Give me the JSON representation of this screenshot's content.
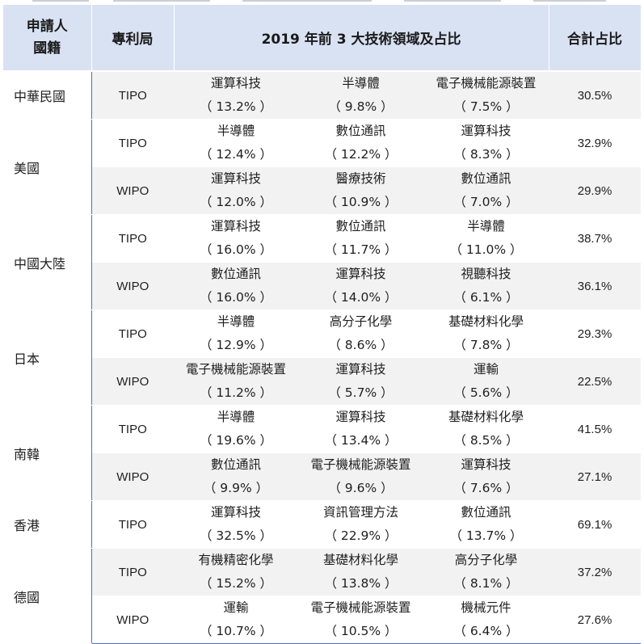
{
  "header": {
    "country_line1": "申請人",
    "country_line2": "國籍",
    "office": "專利局",
    "fields": "2019 年前 3 大技術領域及占比",
    "total": "合計占比"
  },
  "groups": [
    {
      "country": "中華民國",
      "rows": [
        {
          "office": "TIPO",
          "fields": [
            {
              "name": "運算科技",
              "pct": "（ 13.2% ）"
            },
            {
              "name": "半導體",
              "pct": "（ 9.8% ）"
            },
            {
              "name": "電子機械能源裝置",
              "pct": "（ 7.5% ）"
            }
          ],
          "total": "30.5%"
        }
      ]
    },
    {
      "country": "美國",
      "rows": [
        {
          "office": "TIPO",
          "fields": [
            {
              "name": "半導體",
              "pct": "（ 12.4% ）"
            },
            {
              "name": "數位通訊",
              "pct": "（ 12.2% ）"
            },
            {
              "name": "運算科技",
              "pct": "（ 8.3% ）"
            }
          ],
          "total": "32.9%"
        },
        {
          "office": "WIPO",
          "fields": [
            {
              "name": "運算科技",
              "pct": "（ 12.0% ）"
            },
            {
              "name": "醫療技術",
              "pct": "（ 10.9% ）"
            },
            {
              "name": "數位通訊",
              "pct": "（ 7.0% ）"
            }
          ],
          "total": "29.9%"
        }
      ]
    },
    {
      "country": "中國大陸",
      "rows": [
        {
          "office": "TIPO",
          "fields": [
            {
              "name": "運算科技",
              "pct": "（ 16.0% ）"
            },
            {
              "name": "數位通訊",
              "pct": "（ 11.7% ）"
            },
            {
              "name": "半導體",
              "pct": "（ 11.0% ）"
            }
          ],
          "total": "38.7%"
        },
        {
          "office": "WIPO",
          "fields": [
            {
              "name": "數位通訊",
              "pct": "（ 16.0% ）"
            },
            {
              "name": "運算科技",
              "pct": "（ 14.0% ）"
            },
            {
              "name": "視聽科技",
              "pct": "（ 6.1% ）"
            }
          ],
          "total": "36.1%"
        }
      ]
    },
    {
      "country": "日本",
      "rows": [
        {
          "office": "TIPO",
          "fields": [
            {
              "name": "半導體",
              "pct": "（ 12.9% ）"
            },
            {
              "name": "高分子化學",
              "pct": "（ 8.6% ）"
            },
            {
              "name": "基礎材料化學",
              "pct": "（ 7.8% ）"
            }
          ],
          "total": "29.3%"
        },
        {
          "office": "WIPO",
          "fields": [
            {
              "name": "電子機械能源裝置",
              "pct": "（ 11.2% ）"
            },
            {
              "name": "運算科技",
              "pct": "（ 5.7% ）"
            },
            {
              "name": "運輸",
              "pct": "（ 5.6% ）"
            }
          ],
          "total": "22.5%"
        }
      ]
    },
    {
      "country": "南韓",
      "rows": [
        {
          "office": "TIPO",
          "fields": [
            {
              "name": "半導體",
              "pct": "（ 19.6% ）"
            },
            {
              "name": "運算科技",
              "pct": "（ 13.4% ）"
            },
            {
              "name": "基礎材料化學",
              "pct": "（ 8.5% ）"
            }
          ],
          "total": "41.5%"
        },
        {
          "office": "WIPO",
          "fields": [
            {
              "name": "數位通訊",
              "pct": "（ 9.9% ）"
            },
            {
              "name": "電子機械能源裝置",
              "pct": "（ 9.6% ）"
            },
            {
              "name": "運算科技",
              "pct": "（ 7.6% ）"
            }
          ],
          "total": "27.1%"
        }
      ]
    },
    {
      "country": "香港",
      "rows": [
        {
          "office": "TIPO",
          "fields": [
            {
              "name": "運算科技",
              "pct": "（ 32.5% ）"
            },
            {
              "name": "資訊管理方法",
              "pct": "（ 22.9% ）"
            },
            {
              "name": "數位通訊",
              "pct": "（ 13.7% ）"
            }
          ],
          "total": "69.1%"
        }
      ]
    },
    {
      "country": "德國",
      "rows": [
        {
          "office": "TIPO",
          "fields": [
            {
              "name": "有機精密化學",
              "pct": "（ 15.2% ）"
            },
            {
              "name": "基礎材料化學",
              "pct": "（ 13.8% ）"
            },
            {
              "name": "高分子化學",
              "pct": "（ 8.1% ）"
            }
          ],
          "total": "37.2%"
        },
        {
          "office": "WIPO",
          "fields": [
            {
              "name": "運輸",
              "pct": "（ 10.7% ）"
            },
            {
              "name": "電子機械能源裝置",
              "pct": "（ 10.5% ）"
            },
            {
              "name": "機械元件",
              "pct": "（ 6.4% ）"
            }
          ],
          "total": "27.6%"
        }
      ]
    }
  ]
}
